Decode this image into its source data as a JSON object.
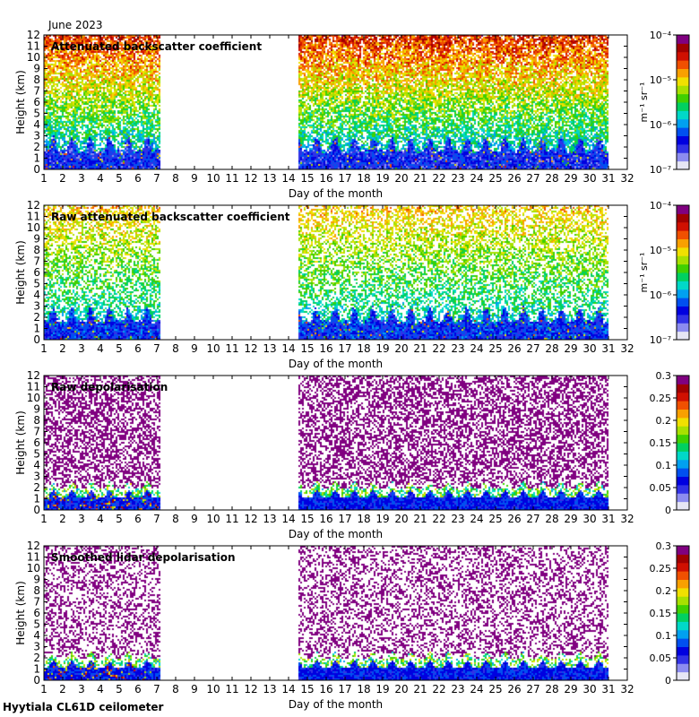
{
  "header": {
    "date_label": "June 2023"
  },
  "footer": {
    "station_label": "Hyytiala CL61D ceilometer"
  },
  "colors": {
    "jet": [
      "#e6e6f5",
      "#8c8cf0",
      "#3232e6",
      "#0000e0",
      "#0050f0",
      "#00a0f0",
      "#00d8c8",
      "#00d060",
      "#40d000",
      "#a8e000",
      "#f0e000",
      "#f8a000",
      "#f05000",
      "#d01000",
      "#a00000",
      "#800080"
    ]
  },
  "chart_data": [
    {
      "type": "heatmap",
      "title": "Attenuated backscatter coefficient",
      "xlabel": "Day of the month",
      "ylabel": "Height (km)",
      "xlim": [
        1,
        32
      ],
      "ylim": [
        0,
        12
      ],
      "x_ticks": [
        "1",
        "2",
        "3",
        "4",
        "5",
        "6",
        "7",
        "8",
        "9",
        "10",
        "11",
        "12",
        "13",
        "14",
        "15",
        "16",
        "17",
        "18",
        "19",
        "20",
        "21",
        "22",
        "23",
        "24",
        "25",
        "26",
        "27",
        "28",
        "29",
        "30",
        "31",
        "32"
      ],
      "y_ticks": [
        "0",
        "1",
        "2",
        "3",
        "4",
        "5",
        "6",
        "7",
        "8",
        "9",
        "10",
        "11",
        "12"
      ],
      "data_coverage_days": [
        [
          1,
          7.2
        ],
        [
          14.5,
          31
        ]
      ],
      "colorbar": {
        "scale": "log",
        "unit": "m⁻¹ sr⁻¹",
        "ticks": [
          "10⁻⁷",
          "10⁻⁶",
          "10⁻⁵",
          "10⁻⁴"
        ]
      },
      "pattern": "backscatter"
    },
    {
      "type": "heatmap",
      "title": "Raw attenuated backscatter coefficient",
      "xlabel": "Day of the month",
      "ylabel": "Height (km)",
      "xlim": [
        1,
        32
      ],
      "ylim": [
        0,
        12
      ],
      "x_ticks": [
        "1",
        "2",
        "3",
        "4",
        "5",
        "6",
        "7",
        "8",
        "9",
        "10",
        "11",
        "12",
        "13",
        "14",
        "15",
        "16",
        "17",
        "18",
        "19",
        "20",
        "21",
        "22",
        "23",
        "24",
        "25",
        "26",
        "27",
        "28",
        "29",
        "30",
        "31",
        "32"
      ],
      "y_ticks": [
        "0",
        "1",
        "2",
        "3",
        "4",
        "5",
        "6",
        "7",
        "8",
        "9",
        "10",
        "11",
        "12"
      ],
      "data_coverage_days": [
        [
          1,
          7.2
        ],
        [
          14.5,
          31
        ]
      ],
      "colorbar": {
        "scale": "log",
        "unit": "m⁻¹ sr⁻¹",
        "ticks": [
          "10⁻⁷",
          "10⁻⁶",
          "10⁻⁵",
          "10⁻⁴"
        ]
      },
      "pattern": "raw_backscatter"
    },
    {
      "type": "heatmap",
      "title": "Raw depolarisation",
      "xlabel": "Day of the month",
      "ylabel": "Height (km)",
      "xlim": [
        1,
        32
      ],
      "ylim": [
        0,
        12
      ],
      "x_ticks": [
        "1",
        "2",
        "3",
        "4",
        "5",
        "6",
        "7",
        "8",
        "9",
        "10",
        "11",
        "12",
        "13",
        "14",
        "15",
        "16",
        "17",
        "18",
        "19",
        "20",
        "21",
        "22",
        "23",
        "24",
        "25",
        "26",
        "27",
        "28",
        "29",
        "30",
        "31",
        "32"
      ],
      "y_ticks": [
        "0",
        "1",
        "2",
        "3",
        "4",
        "5",
        "6",
        "7",
        "8",
        "9",
        "10",
        "11",
        "12"
      ],
      "data_coverage_days": [
        [
          1,
          7.2
        ],
        [
          14.5,
          31
        ]
      ],
      "colorbar": {
        "scale": "linear",
        "unit": "",
        "range": [
          0,
          0.3
        ],
        "ticks": [
          "0",
          "0.05",
          "0.1",
          "0.15",
          "0.2",
          "0.25",
          "0.3"
        ]
      },
      "pattern": "depol"
    },
    {
      "type": "heatmap",
      "title": "Smoothed lidar depolarisation",
      "xlabel": "Day of the month",
      "ylabel": "Height (km)",
      "xlim": [
        1,
        32
      ],
      "ylim": [
        0,
        12
      ],
      "x_ticks": [
        "1",
        "2",
        "3",
        "4",
        "5",
        "6",
        "7",
        "8",
        "9",
        "10",
        "11",
        "12",
        "13",
        "14",
        "15",
        "16",
        "17",
        "18",
        "19",
        "20",
        "21",
        "22",
        "23",
        "24",
        "25",
        "26",
        "27",
        "28",
        "29",
        "30",
        "31",
        "32"
      ],
      "y_ticks": [
        "0",
        "1",
        "2",
        "3",
        "4",
        "5",
        "6",
        "7",
        "8",
        "9",
        "10",
        "11",
        "12"
      ],
      "data_coverage_days": [
        [
          1,
          7.2
        ],
        [
          14.5,
          31
        ]
      ],
      "colorbar": {
        "scale": "linear",
        "unit": "",
        "range": [
          0,
          0.3
        ],
        "ticks": [
          "0",
          "0.05",
          "0.1",
          "0.15",
          "0.2",
          "0.25",
          "0.3"
        ]
      },
      "pattern": "depol_smooth"
    }
  ]
}
